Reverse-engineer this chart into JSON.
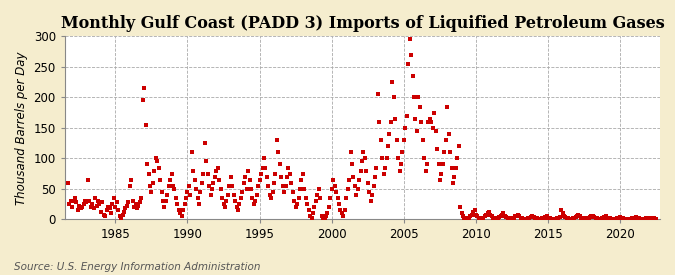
{
  "title": "Monthly Gulf Coast (PADD 3) Imports of Liquified Petroleum Gases",
  "ylabel": "Thousand Barrels per Day",
  "source": "Source: U.S. Energy Information Administration",
  "fig_background_color": "#F5EDCE",
  "plot_background_color": "#FFFFFF",
  "marker_color": "#CC0000",
  "marker": "s",
  "marker_size": 3.2,
  "xlim": [
    1981.5,
    2022.75
  ],
  "ylim": [
    0,
    300
  ],
  "yticks": [
    0,
    50,
    100,
    150,
    200,
    250,
    300
  ],
  "xticks": [
    1985,
    1990,
    1995,
    2000,
    2005,
    2010,
    2015,
    2020
  ],
  "grid_color": "#AAAAAA",
  "grid_style": "--",
  "title_fontsize": 11.5,
  "label_fontsize": 8.5,
  "tick_fontsize": 8.5,
  "source_fontsize": 7.5,
  "data": [
    [
      1981.7,
      60
    ],
    [
      1981.8,
      25
    ],
    [
      1981.9,
      30
    ],
    [
      1982.0,
      20
    ],
    [
      1982.1,
      30
    ],
    [
      1982.2,
      35
    ],
    [
      1982.3,
      28
    ],
    [
      1982.4,
      15
    ],
    [
      1982.5,
      22
    ],
    [
      1982.6,
      18
    ],
    [
      1982.7,
      20
    ],
    [
      1982.8,
      25
    ],
    [
      1982.9,
      30
    ],
    [
      1983.0,
      28
    ],
    [
      1983.1,
      65
    ],
    [
      1983.2,
      30
    ],
    [
      1983.3,
      20
    ],
    [
      1983.4,
      25
    ],
    [
      1983.5,
      18
    ],
    [
      1983.6,
      35
    ],
    [
      1983.7,
      22
    ],
    [
      1983.8,
      30
    ],
    [
      1983.9,
      25
    ],
    [
      1984.0,
      12
    ],
    [
      1984.1,
      28
    ],
    [
      1984.2,
      8
    ],
    [
      1984.3,
      5
    ],
    [
      1984.4,
      15
    ],
    [
      1984.5,
      20
    ],
    [
      1984.6,
      18
    ],
    [
      1984.7,
      10
    ],
    [
      1984.8,
      25
    ],
    [
      1984.9,
      35
    ],
    [
      1985.0,
      20
    ],
    [
      1985.1,
      28
    ],
    [
      1985.2,
      15
    ],
    [
      1985.3,
      5
    ],
    [
      1985.4,
      3
    ],
    [
      1985.5,
      8
    ],
    [
      1985.6,
      12
    ],
    [
      1985.7,
      18
    ],
    [
      1985.8,
      22
    ],
    [
      1985.9,
      28
    ],
    [
      1986.0,
      55
    ],
    [
      1986.1,
      65
    ],
    [
      1986.2,
      30
    ],
    [
      1986.3,
      20
    ],
    [
      1986.4,
      25
    ],
    [
      1986.5,
      18
    ],
    [
      1986.6,
      22
    ],
    [
      1986.7,
      28
    ],
    [
      1986.8,
      35
    ],
    [
      1986.9,
      195
    ],
    [
      1987.0,
      215
    ],
    [
      1987.1,
      155
    ],
    [
      1987.2,
      90
    ],
    [
      1987.3,
      75
    ],
    [
      1987.4,
      55
    ],
    [
      1987.5,
      45
    ],
    [
      1987.6,
      60
    ],
    [
      1987.7,
      80
    ],
    [
      1987.8,
      100
    ],
    [
      1987.9,
      95
    ],
    [
      1988.0,
      85
    ],
    [
      1988.1,
      65
    ],
    [
      1988.2,
      45
    ],
    [
      1988.3,
      30
    ],
    [
      1988.4,
      20
    ],
    [
      1988.5,
      30
    ],
    [
      1988.6,
      40
    ],
    [
      1988.7,
      55
    ],
    [
      1988.8,
      65
    ],
    [
      1988.9,
      75
    ],
    [
      1989.0,
      55
    ],
    [
      1989.1,
      50
    ],
    [
      1989.2,
      35
    ],
    [
      1989.3,
      25
    ],
    [
      1989.4,
      15
    ],
    [
      1989.5,
      10
    ],
    [
      1989.6,
      5
    ],
    [
      1989.7,
      15
    ],
    [
      1989.8,
      25
    ],
    [
      1989.9,
      35
    ],
    [
      1990.0,
      45
    ],
    [
      1990.1,
      55
    ],
    [
      1990.2,
      40
    ],
    [
      1990.3,
      110
    ],
    [
      1990.4,
      80
    ],
    [
      1990.5,
      65
    ],
    [
      1990.6,
      50
    ],
    [
      1990.7,
      35
    ],
    [
      1990.8,
      25
    ],
    [
      1990.9,
      45
    ],
    [
      1991.0,
      60
    ],
    [
      1991.1,
      75
    ],
    [
      1991.2,
      125
    ],
    [
      1991.3,
      95
    ],
    [
      1991.4,
      75
    ],
    [
      1991.5,
      55
    ],
    [
      1991.6,
      40
    ],
    [
      1991.7,
      50
    ],
    [
      1991.8,
      60
    ],
    [
      1991.9,
      70
    ],
    [
      1992.0,
      80
    ],
    [
      1992.1,
      85
    ],
    [
      1992.2,
      65
    ],
    [
      1992.3,
      50
    ],
    [
      1992.4,
      35
    ],
    [
      1992.5,
      25
    ],
    [
      1992.6,
      20
    ],
    [
      1992.7,
      30
    ],
    [
      1992.8,
      40
    ],
    [
      1992.9,
      55
    ],
    [
      1993.0,
      70
    ],
    [
      1993.1,
      55
    ],
    [
      1993.2,
      40
    ],
    [
      1993.3,
      30
    ],
    [
      1993.4,
      20
    ],
    [
      1993.5,
      15
    ],
    [
      1993.6,
      25
    ],
    [
      1993.7,
      35
    ],
    [
      1993.8,
      45
    ],
    [
      1993.9,
      60
    ],
    [
      1994.0,
      70
    ],
    [
      1994.1,
      50
    ],
    [
      1994.2,
      80
    ],
    [
      1994.3,
      65
    ],
    [
      1994.4,
      50
    ],
    [
      1994.5,
      35
    ],
    [
      1994.6,
      25
    ],
    [
      1994.7,
      30
    ],
    [
      1994.8,
      40
    ],
    [
      1994.9,
      55
    ],
    [
      1995.0,
      65
    ],
    [
      1995.1,
      75
    ],
    [
      1995.2,
      85
    ],
    [
      1995.3,
      100
    ],
    [
      1995.4,
      85
    ],
    [
      1995.5,
      70
    ],
    [
      1995.6,
      55
    ],
    [
      1995.7,
      40
    ],
    [
      1995.8,
      35
    ],
    [
      1995.9,
      45
    ],
    [
      1996.0,
      60
    ],
    [
      1996.1,
      75
    ],
    [
      1996.2,
      130
    ],
    [
      1996.3,
      110
    ],
    [
      1996.4,
      90
    ],
    [
      1996.5,
      70
    ],
    [
      1996.6,
      55
    ],
    [
      1996.7,
      45
    ],
    [
      1996.8,
      55
    ],
    [
      1996.9,
      70
    ],
    [
      1997.0,
      85
    ],
    [
      1997.1,
      75
    ],
    [
      1997.2,
      60
    ],
    [
      1997.3,
      45
    ],
    [
      1997.4,
      30
    ],
    [
      1997.5,
      20
    ],
    [
      1997.6,
      25
    ],
    [
      1997.7,
      35
    ],
    [
      1997.8,
      50
    ],
    [
      1997.9,
      65
    ],
    [
      1998.0,
      75
    ],
    [
      1998.1,
      50
    ],
    [
      1998.2,
      35
    ],
    [
      1998.3,
      25
    ],
    [
      1998.4,
      15
    ],
    [
      1998.5,
      5
    ],
    [
      1998.6,
      3
    ],
    [
      1998.7,
      10
    ],
    [
      1998.8,
      20
    ],
    [
      1998.9,
      30
    ],
    [
      1999.0,
      40
    ],
    [
      1999.1,
      50
    ],
    [
      1999.2,
      35
    ],
    [
      1999.3,
      5
    ],
    [
      1999.4,
      3
    ],
    [
      1999.5,
      1
    ],
    [
      1999.6,
      5
    ],
    [
      1999.7,
      10
    ],
    [
      1999.8,
      20
    ],
    [
      1999.9,
      35
    ],
    [
      2000.0,
      50
    ],
    [
      2000.1,
      65
    ],
    [
      2000.2,
      55
    ],
    [
      2000.3,
      45
    ],
    [
      2000.4,
      35
    ],
    [
      2000.5,
      25
    ],
    [
      2000.6,
      15
    ],
    [
      2000.7,
      10
    ],
    [
      2000.8,
      5
    ],
    [
      2000.9,
      15
    ],
    [
      2001.0,
      35
    ],
    [
      2001.1,
      50
    ],
    [
      2001.2,
      65
    ],
    [
      2001.3,
      110
    ],
    [
      2001.4,
      90
    ],
    [
      2001.5,
      70
    ],
    [
      2001.6,
      55
    ],
    [
      2001.7,
      40
    ],
    [
      2001.8,
      50
    ],
    [
      2001.9,
      65
    ],
    [
      2002.0,
      80
    ],
    [
      2002.1,
      95
    ],
    [
      2002.2,
      110
    ],
    [
      2002.3,
      100
    ],
    [
      2002.4,
      80
    ],
    [
      2002.5,
      60
    ],
    [
      2002.6,
      45
    ],
    [
      2002.7,
      30
    ],
    [
      2002.8,
      40
    ],
    [
      2002.9,
      55
    ],
    [
      2003.0,
      70
    ],
    [
      2003.1,
      85
    ],
    [
      2003.2,
      205
    ],
    [
      2003.3,
      160
    ],
    [
      2003.4,
      130
    ],
    [
      2003.5,
      100
    ],
    [
      2003.6,
      75
    ],
    [
      2003.7,
      85
    ],
    [
      2003.8,
      100
    ],
    [
      2003.9,
      120
    ],
    [
      2004.0,
      140
    ],
    [
      2004.1,
      160
    ],
    [
      2004.2,
      225
    ],
    [
      2004.3,
      200
    ],
    [
      2004.4,
      165
    ],
    [
      2004.5,
      130
    ],
    [
      2004.6,
      100
    ],
    [
      2004.7,
      80
    ],
    [
      2004.8,
      90
    ],
    [
      2004.9,
      110
    ],
    [
      2005.0,
      130
    ],
    [
      2005.1,
      150
    ],
    [
      2005.2,
      170
    ],
    [
      2005.3,
      255
    ],
    [
      2005.4,
      295
    ],
    [
      2005.5,
      270
    ],
    [
      2005.6,
      235
    ],
    [
      2005.7,
      200
    ],
    [
      2005.8,
      165
    ],
    [
      2005.9,
      145
    ],
    [
      2006.0,
      200
    ],
    [
      2006.1,
      185
    ],
    [
      2006.2,
      160
    ],
    [
      2006.3,
      130
    ],
    [
      2006.4,
      100
    ],
    [
      2006.5,
      80
    ],
    [
      2006.6,
      90
    ],
    [
      2006.7,
      160
    ],
    [
      2006.8,
      165
    ],
    [
      2006.9,
      160
    ],
    [
      2007.0,
      150
    ],
    [
      2007.1,
      175
    ],
    [
      2007.2,
      145
    ],
    [
      2007.3,
      115
    ],
    [
      2007.4,
      90
    ],
    [
      2007.5,
      65
    ],
    [
      2007.6,
      75
    ],
    [
      2007.7,
      90
    ],
    [
      2007.8,
      110
    ],
    [
      2007.9,
      130
    ],
    [
      2008.0,
      185
    ],
    [
      2008.1,
      140
    ],
    [
      2008.2,
      110
    ],
    [
      2008.3,
      85
    ],
    [
      2008.4,
      60
    ],
    [
      2008.5,
      70
    ],
    [
      2008.6,
      85
    ],
    [
      2008.7,
      100
    ],
    [
      2008.8,
      120
    ],
    [
      2008.9,
      20
    ],
    [
      2009.0,
      10
    ],
    [
      2009.1,
      5
    ],
    [
      2009.2,
      3
    ],
    [
      2009.3,
      2
    ],
    [
      2009.4,
      1
    ],
    [
      2009.5,
      2
    ],
    [
      2009.6,
      5
    ],
    [
      2009.7,
      8
    ],
    [
      2009.8,
      12
    ],
    [
      2009.9,
      15
    ],
    [
      2010.0,
      8
    ],
    [
      2010.1,
      5
    ],
    [
      2010.2,
      3
    ],
    [
      2010.3,
      2
    ],
    [
      2010.4,
      1
    ],
    [
      2010.5,
      2
    ],
    [
      2010.6,
      5
    ],
    [
      2010.7,
      8
    ],
    [
      2010.8,
      10
    ],
    [
      2010.9,
      12
    ],
    [
      2011.0,
      8
    ],
    [
      2011.1,
      5
    ],
    [
      2011.2,
      3
    ],
    [
      2011.3,
      2
    ],
    [
      2011.4,
      1
    ],
    [
      2011.5,
      2
    ],
    [
      2011.6,
      4
    ],
    [
      2011.7,
      6
    ],
    [
      2011.8,
      8
    ],
    [
      2011.9,
      10
    ],
    [
      2012.0,
      6
    ],
    [
      2012.1,
      4
    ],
    [
      2012.2,
      2
    ],
    [
      2012.3,
      1
    ],
    [
      2012.4,
      1
    ],
    [
      2012.5,
      2
    ],
    [
      2012.6,
      3
    ],
    [
      2012.7,
      5
    ],
    [
      2012.8,
      6
    ],
    [
      2012.9,
      8
    ],
    [
      2013.0,
      5
    ],
    [
      2013.1,
      3
    ],
    [
      2013.2,
      2
    ],
    [
      2013.3,
      1
    ],
    [
      2013.4,
      1
    ],
    [
      2013.5,
      1
    ],
    [
      2013.6,
      2
    ],
    [
      2013.7,
      3
    ],
    [
      2013.8,
      4
    ],
    [
      2013.9,
      5
    ],
    [
      2014.0,
      4
    ],
    [
      2014.1,
      3
    ],
    [
      2014.2,
      2
    ],
    [
      2014.3,
      1
    ],
    [
      2014.4,
      1
    ],
    [
      2014.5,
      1
    ],
    [
      2014.6,
      2
    ],
    [
      2014.7,
      3
    ],
    [
      2014.8,
      4
    ],
    [
      2014.9,
      5
    ],
    [
      2015.0,
      3
    ],
    [
      2015.1,
      2
    ],
    [
      2015.2,
      1
    ],
    [
      2015.3,
      1
    ],
    [
      2015.4,
      1
    ],
    [
      2015.5,
      1
    ],
    [
      2015.6,
      2
    ],
    [
      2015.7,
      3
    ],
    [
      2015.8,
      4
    ],
    [
      2015.9,
      15
    ],
    [
      2016.0,
      10
    ],
    [
      2016.1,
      5
    ],
    [
      2016.2,
      4
    ],
    [
      2016.3,
      3
    ],
    [
      2016.4,
      2
    ],
    [
      2016.5,
      1
    ],
    [
      2016.6,
      1
    ],
    [
      2016.7,
      2
    ],
    [
      2016.8,
      3
    ],
    [
      2016.9,
      4
    ],
    [
      2017.0,
      5
    ],
    [
      2017.1,
      8
    ],
    [
      2017.2,
      5
    ],
    [
      2017.3,
      3
    ],
    [
      2017.4,
      2
    ],
    [
      2017.5,
      1
    ],
    [
      2017.6,
      1
    ],
    [
      2017.7,
      2
    ],
    [
      2017.8,
      3
    ],
    [
      2017.9,
      4
    ],
    [
      2018.0,
      5
    ],
    [
      2018.1,
      6
    ],
    [
      2018.2,
      4
    ],
    [
      2018.3,
      3
    ],
    [
      2018.4,
      2
    ],
    [
      2018.5,
      1
    ],
    [
      2018.6,
      1
    ],
    [
      2018.7,
      2
    ],
    [
      2018.8,
      3
    ],
    [
      2018.9,
      4
    ],
    [
      2019.0,
      5
    ],
    [
      2019.1,
      3
    ],
    [
      2019.2,
      2
    ],
    [
      2019.3,
      2
    ],
    [
      2019.4,
      1
    ],
    [
      2019.5,
      1
    ],
    [
      2019.6,
      1
    ],
    [
      2019.7,
      1
    ],
    [
      2019.8,
      2
    ],
    [
      2019.9,
      3
    ],
    [
      2020.0,
      4
    ],
    [
      2020.1,
      3
    ],
    [
      2020.2,
      2
    ],
    [
      2020.3,
      1
    ],
    [
      2020.4,
      1
    ],
    [
      2020.5,
      1
    ],
    [
      2020.6,
      1
    ],
    [
      2020.7,
      1
    ],
    [
      2020.8,
      2
    ],
    [
      2020.9,
      3
    ],
    [
      2021.0,
      3
    ],
    [
      2021.1,
      4
    ],
    [
      2021.2,
      3
    ],
    [
      2021.3,
      2
    ],
    [
      2021.4,
      1
    ],
    [
      2021.5,
      1
    ],
    [
      2021.6,
      1
    ],
    [
      2021.7,
      1
    ],
    [
      2021.8,
      2
    ],
    [
      2021.9,
      2
    ],
    [
      2022.0,
      3
    ],
    [
      2022.1,
      3
    ],
    [
      2022.2,
      2
    ],
    [
      2022.3,
      2
    ],
    [
      2022.4,
      1
    ],
    [
      2022.5,
      1
    ]
  ]
}
